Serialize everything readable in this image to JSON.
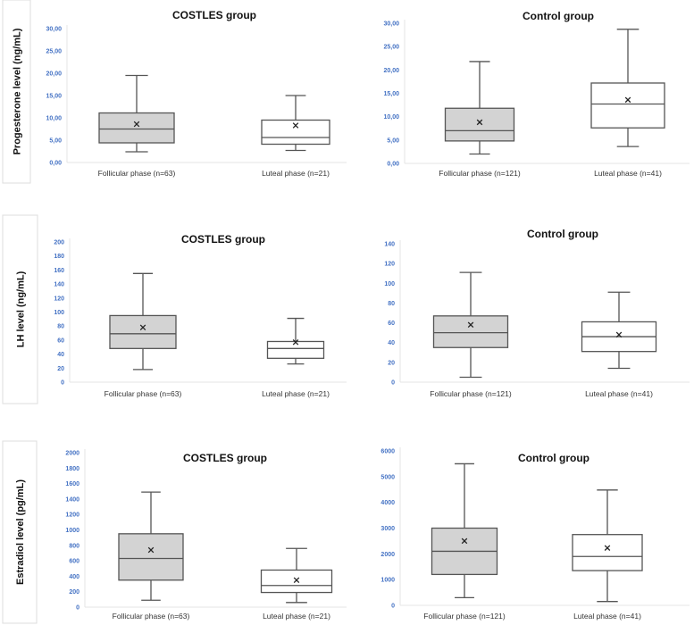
{
  "chart_data": [
    {
      "type": "box",
      "title": "COSTLES group",
      "ylabel": "Progesterone level (ng/mL)",
      "ylim": [
        0,
        30
      ],
      "yticks": [
        "0,00",
        "5,00",
        "10,00",
        "15,00",
        "20,00",
        "25,00",
        "30,00"
      ],
      "categories": [
        "Follicular phase (n=63)",
        "Luteal phase (n=21)"
      ],
      "boxes": [
        {
          "min": 2.4,
          "q1": 4.4,
          "median": 7.5,
          "q3": 11.1,
          "max": 19.5,
          "mean": 8.6,
          "fill": "#d3d3d3"
        },
        {
          "min": 2.7,
          "q1": 4.1,
          "median": 5.6,
          "q3": 9.5,
          "max": 15.0,
          "mean": 8.3,
          "fill": "#ffffff"
        }
      ]
    },
    {
      "type": "box",
      "title": "Control group",
      "ylabel": "",
      "ylim": [
        0,
        30
      ],
      "yticks": [
        "0,00",
        "5,00",
        "10,00",
        "15,00",
        "20,00",
        "25,00",
        "30,00"
      ],
      "categories": [
        "Follicular phase (n=121)",
        "Luteal phase (n=41)"
      ],
      "boxes": [
        {
          "min": 2.0,
          "q1": 4.8,
          "median": 7.0,
          "q3": 11.8,
          "max": 21.8,
          "mean": 8.8,
          "fill": "#d3d3d3"
        },
        {
          "min": 3.6,
          "q1": 7.6,
          "median": 12.7,
          "q3": 17.2,
          "max": 28.7,
          "mean": 13.6,
          "fill": "#ffffff"
        }
      ]
    },
    {
      "type": "box",
      "title": "COSTLES group",
      "ylabel": "LH  level (ng/mL)",
      "ylim": [
        0,
        200
      ],
      "yticks": [
        "0",
        "20",
        "40",
        "60",
        "80",
        "100",
        "120",
        "140",
        "160",
        "180",
        "200"
      ],
      "categories": [
        "Follicular phase (n=63)",
        "Luteal phase (n=21)"
      ],
      "boxes": [
        {
          "min": 18,
          "q1": 48,
          "median": 69,
          "q3": 95,
          "max": 155,
          "mean": 78,
          "fill": "#d3d3d3"
        },
        {
          "min": 26,
          "q1": 34,
          "median": 48,
          "q3": 58,
          "max": 91,
          "mean": 57,
          "fill": "#ffffff"
        }
      ]
    },
    {
      "type": "box",
      "title": "Control group",
      "ylabel": "",
      "ylim": [
        0,
        140
      ],
      "yticks": [
        "0",
        "20",
        "40",
        "60",
        "80",
        "100",
        "120",
        "140"
      ],
      "categories": [
        "Follicular phase (n=121)",
        "Luteal phase (n=41)"
      ],
      "boxes": [
        {
          "min": 5,
          "q1": 35,
          "median": 50,
          "q3": 67,
          "max": 111,
          "mean": 58,
          "fill": "#d3d3d3"
        },
        {
          "min": 14,
          "q1": 31,
          "median": 46,
          "q3": 61,
          "max": 91,
          "mean": 48,
          "fill": "#ffffff"
        }
      ]
    },
    {
      "type": "box",
      "title": "COSTLES group",
      "ylabel": "Estradiol level (pg/mL)",
      "ylim": [
        0,
        2000
      ],
      "yticks": [
        "0",
        "200",
        "400",
        "600",
        "800",
        "1000",
        "1200",
        "1400",
        "1600",
        "1800",
        "2000"
      ],
      "categories": [
        "Follicular phase (n=63)",
        "Luteal phase (n=21)"
      ],
      "boxes": [
        {
          "min": 90,
          "q1": 350,
          "median": 630,
          "q3": 950,
          "max": 1490,
          "mean": 740,
          "fill": "#d3d3d3"
        },
        {
          "min": 60,
          "q1": 190,
          "median": 280,
          "q3": 480,
          "max": 760,
          "mean": 350,
          "fill": "#ffffff"
        }
      ]
    },
    {
      "type": "box",
      "title": "Control group",
      "ylabel": "",
      "ylim": [
        0,
        6000
      ],
      "yticks": [
        "0",
        "1000",
        "2000",
        "3000",
        "4000",
        "5000",
        "6000"
      ],
      "categories": [
        "Follicular phase (n=121)",
        "Luteal phase (n=41)"
      ],
      "boxes": [
        {
          "min": 300,
          "q1": 1200,
          "median": 2100,
          "q3": 3000,
          "max": 5500,
          "mean": 2500,
          "fill": "#d3d3d3"
        },
        {
          "min": 150,
          "q1": 1350,
          "median": 1900,
          "q3": 2750,
          "max": 4480,
          "mean": 2230,
          "fill": "#ffffff"
        }
      ]
    }
  ],
  "colors": {
    "tick": "#4472c4",
    "stroke": "#555555",
    "follicular_fill": "#d3d3d3",
    "luteal_fill": "#ffffff"
  }
}
